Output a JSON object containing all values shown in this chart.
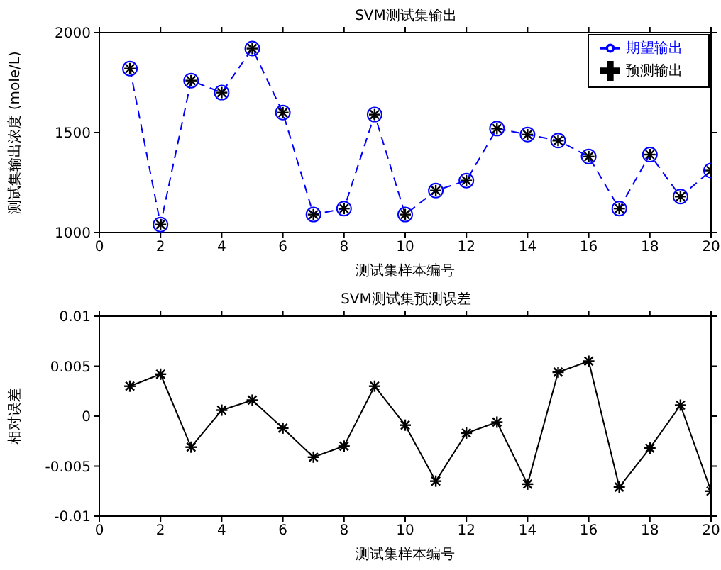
{
  "chart_data": [
    {
      "type": "line",
      "title": "SVM测试集输出",
      "xlabel": "测试集样本编号",
      "ylabel": "测试集输出浓度 (mole/L)",
      "x": [
        1,
        2,
        3,
        4,
        5,
        6,
        7,
        8,
        9,
        10,
        11,
        12,
        13,
        14,
        15,
        16,
        17,
        18,
        19,
        20
      ],
      "xlim": [
        0,
        20
      ],
      "xticks": [
        0,
        2,
        4,
        6,
        8,
        10,
        12,
        14,
        16,
        18,
        20
      ],
      "ylim": [
        1000,
        2000
      ],
      "yticks": [
        1000,
        1500,
        2000
      ],
      "legend": "top right",
      "series": [
        {
          "name": "期望输出",
          "color": "#0000ff",
          "marker": "circle",
          "line_style": "dashed",
          "values": [
            1820,
            1040,
            1760,
            1700,
            1920,
            1600,
            1090,
            1120,
            1590,
            1090,
            1210,
            1260,
            1520,
            1490,
            1460,
            1380,
            1120,
            1390,
            1180,
            1310
          ]
        },
        {
          "name": "预测输出",
          "color": "#000000",
          "type": "scatter",
          "marker": "cross",
          "values": [
            1820,
            1040,
            1760,
            1700,
            1920,
            1600,
            1090,
            1120,
            1590,
            1090,
            1210,
            1260,
            1520,
            1490,
            1460,
            1380,
            1120,
            1390,
            1180,
            1310
          ]
        }
      ]
    },
    {
      "type": "line",
      "title": "SVM测试集预测误差",
      "xlabel": "测试集样本编号",
      "ylabel": "相对误差",
      "x": [
        1,
        2,
        3,
        4,
        5,
        6,
        7,
        8,
        9,
        10,
        11,
        12,
        13,
        14,
        15,
        16,
        17,
        18,
        19,
        20
      ],
      "xlim": [
        0,
        20
      ],
      "xticks": [
        0,
        2,
        4,
        6,
        8,
        10,
        12,
        14,
        16,
        18,
        20
      ],
      "ylim": [
        -0.01,
        0.01
      ],
      "yticks": [
        -0.01,
        -0.005,
        0,
        0.005,
        0.01
      ],
      "series": [
        {
          "color": "#000000",
          "marker": "cross",
          "line_style": "solid",
          "values": [
            0.003,
            0.0042,
            -0.0031,
            0.0006,
            0.0016,
            -0.0012,
            -0.0041,
            -0.003,
            0.003,
            -0.0009,
            -0.0065,
            -0.0017,
            -0.0006,
            -0.0068,
            0.0044,
            0.0055,
            -0.0071,
            -0.0032,
            0.0011,
            -0.0075
          ]
        }
      ]
    }
  ]
}
